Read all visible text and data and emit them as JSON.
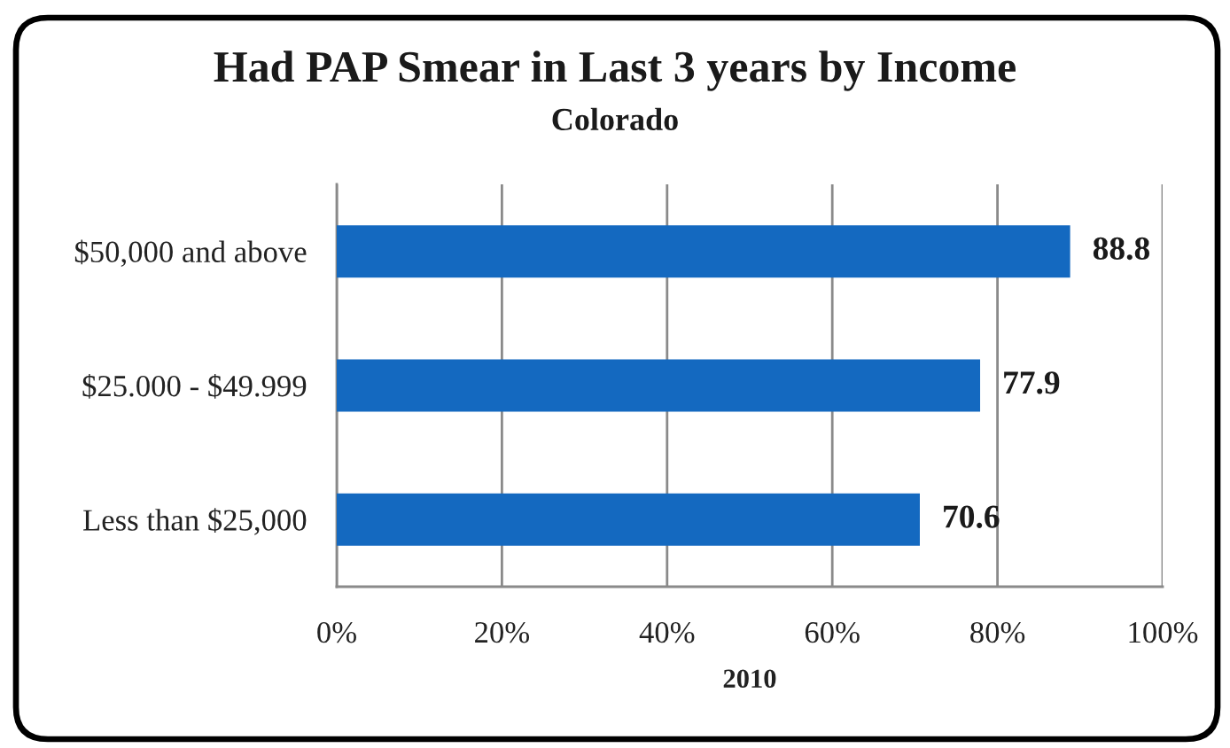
{
  "chart_data": {
    "type": "bar",
    "orientation": "horizontal",
    "title": "Had PAP Smear in Last 3 years by Income",
    "subtitle": "Colorado",
    "xlabel": "2010",
    "categories": [
      "$50,000 and above",
      "$25.000 - $49.999",
      "Less than $25,000"
    ],
    "values": [
      88.8,
      77.9,
      70.6
    ],
    "color": "#1469c0",
    "xlim": [
      0,
      100
    ],
    "xticks": [
      {
        "value": 0,
        "label": "0%"
      },
      {
        "value": 20,
        "label": "20%"
      },
      {
        "value": 40,
        "label": "40%"
      },
      {
        "value": 60,
        "label": "60%"
      },
      {
        "value": 80,
        "label": "80%"
      },
      {
        "value": 100,
        "label": "100%"
      }
    ],
    "grid": "x",
    "data_labels": true
  }
}
